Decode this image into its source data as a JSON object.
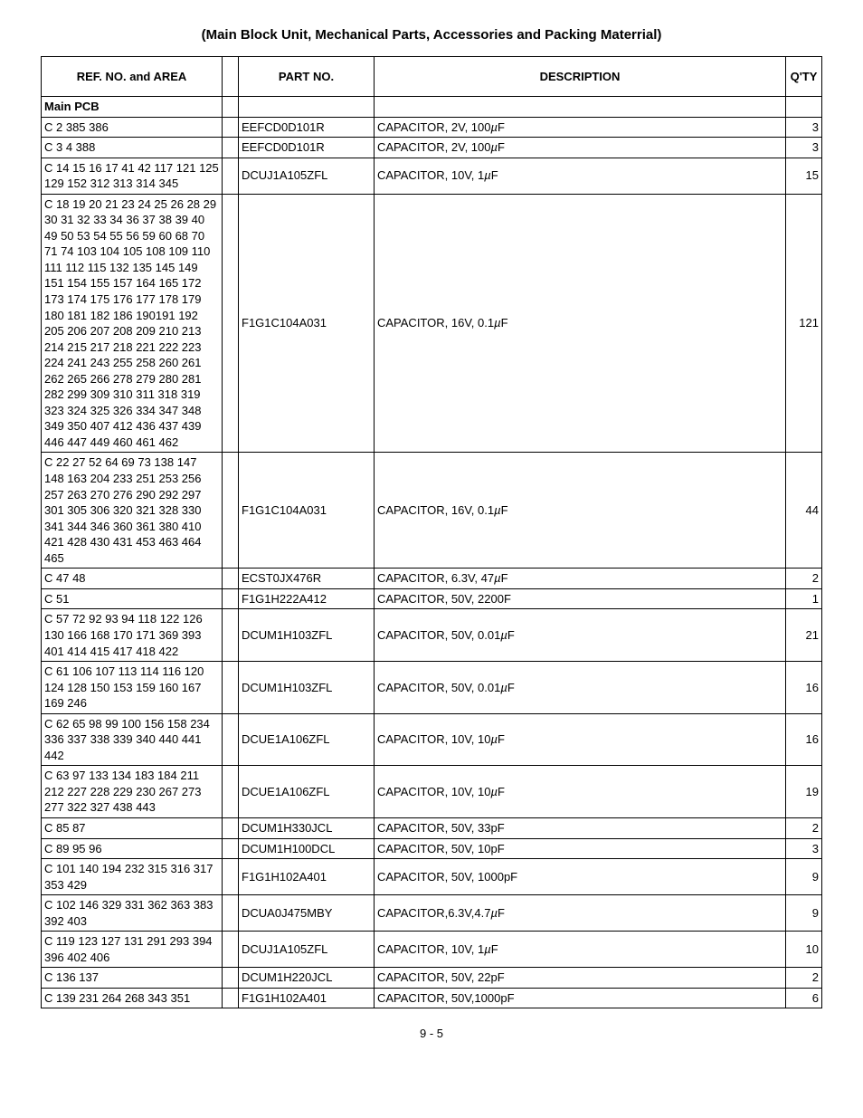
{
  "title": "(Main Block Unit, Mechanical Parts, Accessories and Packing Materrial)",
  "headers": {
    "ref": "REF. NO. and AREA",
    "part": "PART NO.",
    "desc": "DESCRIPTION",
    "qty": "Q'TY"
  },
  "section": "Main PCB",
  "rows": [
    {
      "ref": "C 2 385 386",
      "part": "EEFCD0D101R",
      "desc": "CAPACITOR, 2V, 100",
      "unit": "µ",
      "suffix": "F",
      "qty": "3"
    },
    {
      "ref": "C 3 4  388",
      "part": "EEFCD0D101R",
      "desc": "CAPACITOR, 2V, 100",
      "unit": "µ",
      "suffix": "F",
      "qty": "3"
    },
    {
      "ref": "C 14 15 16 17 41 42 117 121 125 129 152 312 313 314 345",
      "part": "DCUJ1A105ZFL",
      "desc": "CAPACITOR, 10V, 1",
      "unit": "µ",
      "suffix": "F",
      "qty": "15"
    },
    {
      "ref": "C 18 19 20 21 23 24 25 26 28 29 30 31 32 33 34 36 37 38 39 40 49 50 53 54 55 56 59 60 68 70 71 74 103 104 105 108 109 110 111 112 115 132 135 145 149 151 154 155 157 164 165 172 173 174 175 176 177 178 179 180 181 182 186 190191 192 205 206 207 208 209 210 213 214 215 217 218 221 222 223 224 241 243 255 258 260 261 262 265 266 278 279 280 281 282 299 309 310 311 318 319 323 324 325 326 334 347 348 349 350 407 412 436 437 439 446 447 449 460 461 462",
      "part": "F1G1C104A031",
      "desc": "CAPACITOR, 16V, 0.1",
      "unit": "µ",
      "suffix": "F",
      "qty": "121"
    },
    {
      "ref": "C 22 27 52 64 69 73 138 147 148 163 204 233 251 253 256 257 263 270 276 290 292 297 301 305 306 320 321 328 330 341 344 346 360 361 380 410 421 428 430 431 453 463 464 465",
      "part": "F1G1C104A031",
      "desc": "CAPACITOR, 16V, 0.1",
      "unit": "µ",
      "suffix": "F",
      "qty": "44"
    },
    {
      "ref": "C 47 48",
      "part": "ECST0JX476R",
      "desc": "CAPACITOR, 6.3V, 47",
      "unit": "µ",
      "suffix": "F",
      "qty": "2"
    },
    {
      "ref": "C 51",
      "part": "F1G1H222A412",
      "desc": "CAPACITOR, 50V, 2200F",
      "unit": "",
      "suffix": "",
      "qty": "1"
    },
    {
      "ref": "C 57 72 92 93 94 118 122 126 130 166 168 170 171 369 393 401 414 415 417 418 422",
      "part": "DCUM1H103ZFL",
      "desc": "CAPACITOR, 50V, 0.01",
      "unit": "µ",
      "suffix": "F",
      "qty": "21"
    },
    {
      "ref": "C 61 106 107 113 114 116 120 124 128 150 153 159 160 167 169 246",
      "part": "DCUM1H103ZFL",
      "desc": "CAPACITOR, 50V, 0.01",
      "unit": "µ",
      "suffix": "F",
      "qty": "16"
    },
    {
      "ref": "C 62 65 98 99 100 156 158 234 336 337 338 339 340 440 441 442",
      "part": "DCUE1A106ZFL",
      "desc": "CAPACITOR, 10V, 10",
      "unit": "µ",
      "suffix": "F",
      "qty": "16"
    },
    {
      "ref": "C 63 97 133 134 183 184 211 212 227 228 229 230 267 273 277 322 327 438 443",
      "part": "DCUE1A106ZFL",
      "desc": "CAPACITOR, 10V, 10",
      "unit": "µ",
      "suffix": "F",
      "qty": "19"
    },
    {
      "ref": "C 85 87",
      "part": "DCUM1H330JCL",
      "desc": "CAPACITOR, 50V, 33pF",
      "unit": "",
      "suffix": "",
      "qty": "2"
    },
    {
      "ref": "C 89 95 96",
      "part": "DCUM1H100DCL",
      "desc": "CAPACITOR, 50V, 10pF",
      "unit": "",
      "suffix": "",
      "qty": "3"
    },
    {
      "ref": "C 101 140 194 232 315 316 317 353 429",
      "part": "F1G1H102A401",
      "desc": "CAPACITOR, 50V, 1000pF",
      "unit": "",
      "suffix": "",
      "qty": "9"
    },
    {
      "ref": "C 102 146 329 331 362 363 383 392 403",
      "part": "DCUA0J475MBY",
      "desc": "CAPACITOR,6.3V,4.7",
      "unit": "µ",
      "suffix": "F",
      "qty": "9"
    },
    {
      "ref": "C 119 123 127 131 291 293 394 396 402 406",
      "part": "DCUJ1A105ZFL",
      "desc": "CAPACITOR, 10V, 1",
      "unit": "µ",
      "suffix": "F",
      "qty": "10"
    },
    {
      "ref": "C 136 137",
      "part": "DCUM1H220JCL",
      "desc": "CAPACITOR, 50V, 22pF",
      "unit": "",
      "suffix": "",
      "qty": "2"
    },
    {
      "ref": "C 139 231 264 268 343 351",
      "part": "F1G1H102A401",
      "desc": "CAPACITOR, 50V,1000pF",
      "unit": "",
      "suffix": "",
      "qty": "6"
    }
  ],
  "footer": "9 - 5"
}
